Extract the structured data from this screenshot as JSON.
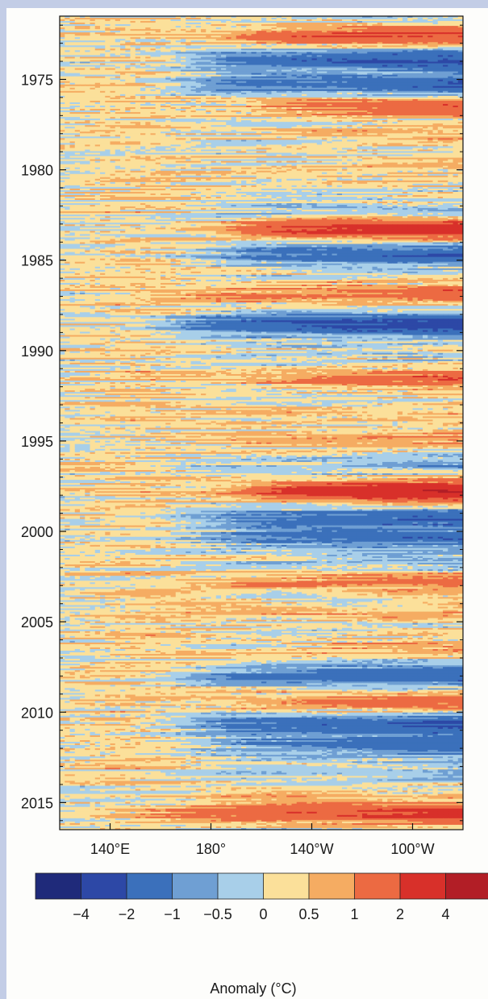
{
  "chart_data": {
    "type": "heatmap",
    "title": "",
    "xlabel": "",
    "ylabel": "",
    "x_ticks": [
      "140°E",
      "180°",
      "140°W",
      "100°W"
    ],
    "x_tick_values": [
      140,
      180,
      220,
      260
    ],
    "xlim": [
      120,
      280
    ],
    "y_ticks": [
      "1975",
      "1980",
      "1985",
      "1990",
      "1995",
      "2000",
      "2005",
      "2010",
      "2015"
    ],
    "y_tick_values": [
      1975,
      1980,
      1985,
      1990,
      1995,
      2000,
      2005,
      2010,
      2015
    ],
    "ylim": [
      1971.5,
      2016.5
    ],
    "y_direction": "downward",
    "colorbar": {
      "label": "Anomaly (°C)",
      "tick_labels": [
        "−4",
        "−2",
        "−1",
        "−0.5",
        "0",
        "0.5",
        "1",
        "2",
        "4"
      ],
      "tick_values": [
        -4,
        -2,
        -1,
        -0.5,
        0,
        0.5,
        1,
        2,
        4
      ],
      "colors": [
        "#1f2a7a",
        "#2d48a6",
        "#3b70bb",
        "#6f9fd3",
        "#a8cfe9",
        "#fbe09a",
        "#f5ac62",
        "#ec6a42",
        "#d8302a",
        "#b21e26"
      ],
      "placement": "bottom"
    },
    "events": [
      {
        "year": 1972.6,
        "west": 190,
        "amp": 2.2
      },
      {
        "year": 1973.9,
        "west": 175,
        "amp": -2.2
      },
      {
        "year": 1975.3,
        "west": 175,
        "amp": -2.0
      },
      {
        "year": 1976.5,
        "west": 195,
        "amp": 1.8
      },
      {
        "year": 1978.0,
        "west": 210,
        "amp": 0.8
      },
      {
        "year": 1979.6,
        "west": 200,
        "amp": 0.5
      },
      {
        "year": 1980.5,
        "west": 175,
        "amp": 0.4
      },
      {
        "year": 1982.6,
        "west": 175,
        "amp": -0.7
      },
      {
        "year": 1983.2,
        "west": 190,
        "amp": 3.5
      },
      {
        "year": 1984.7,
        "west": 180,
        "amp": -1.8
      },
      {
        "year": 1986.8,
        "west": 175,
        "amp": 1.6
      },
      {
        "year": 1988.6,
        "west": 160,
        "amp": -2.8
      },
      {
        "year": 1991.6,
        "west": 195,
        "amp": 1.8
      },
      {
        "year": 1993.4,
        "west": 190,
        "amp": 0.6
      },
      {
        "year": 1994.9,
        "west": 180,
        "amp": 1.0
      },
      {
        "year": 1996.2,
        "west": 200,
        "amp": -0.7
      },
      {
        "year": 1997.8,
        "west": 195,
        "amp": 3.8
      },
      {
        "year": 1999.3,
        "west": 165,
        "amp": -1.9
      },
      {
        "year": 2000.4,
        "west": 175,
        "amp": -1.5
      },
      {
        "year": 2001.8,
        "west": 200,
        "amp": -0.5
      },
      {
        "year": 2002.8,
        "west": 175,
        "amp": 1.4
      },
      {
        "year": 2004.5,
        "west": 170,
        "amp": 0.7
      },
      {
        "year": 2006.5,
        "west": 200,
        "amp": 0.9
      },
      {
        "year": 2008.0,
        "west": 170,
        "amp": -1.8
      },
      {
        "year": 2009.4,
        "west": 180,
        "amp": 1.6
      },
      {
        "year": 2010.7,
        "west": 170,
        "amp": -2.2
      },
      {
        "year": 2011.9,
        "west": 180,
        "amp": -1.6
      },
      {
        "year": 2013.3,
        "west": 210,
        "amp": -0.6
      },
      {
        "year": 2014.5,
        "west": 180,
        "amp": 0.6
      },
      {
        "year": 2015.6,
        "west": 165,
        "amp": 2.6
      }
    ]
  }
}
